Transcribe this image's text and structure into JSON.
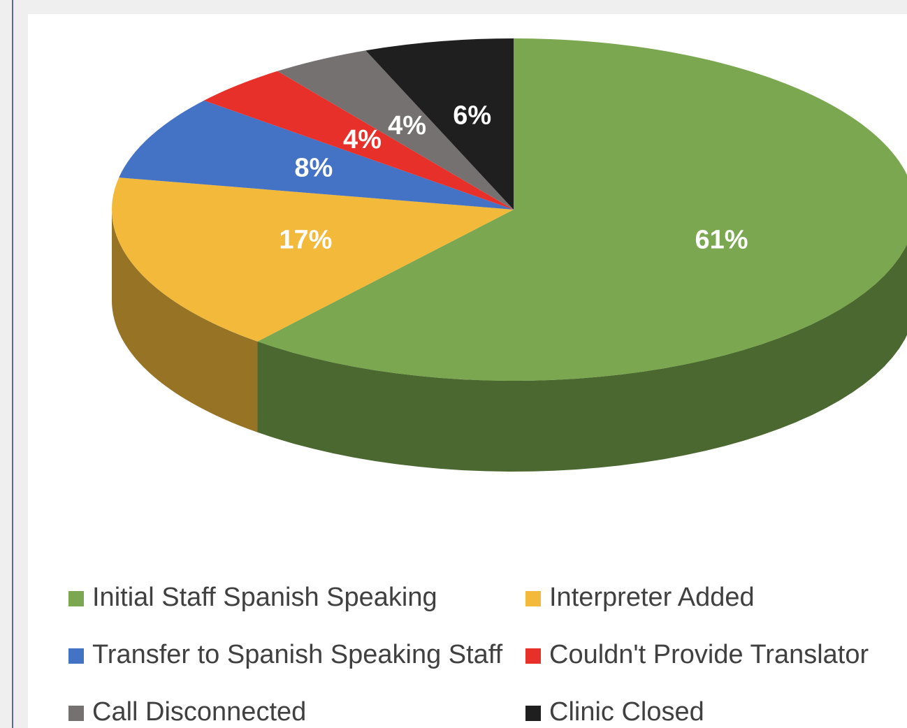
{
  "chart_data": {
    "type": "pie",
    "categories": [
      "Initial Staff Spanish Speaking",
      "Interpreter Added",
      "Transfer to Spanish Speaking Staff",
      "Couldn't Provide Translator",
      "Call Disconnected",
      "Clinic Closed"
    ],
    "values": [
      61,
      17,
      8,
      4,
      4,
      6
    ],
    "value_labels": [
      "61%",
      "17%",
      "8%",
      "4%",
      "4%",
      "6%"
    ],
    "colors": [
      "#7aa74f",
      "#f2b93b",
      "#4472c4",
      "#e8302b",
      "#767171",
      "#1f1f1f"
    ]
  }
}
